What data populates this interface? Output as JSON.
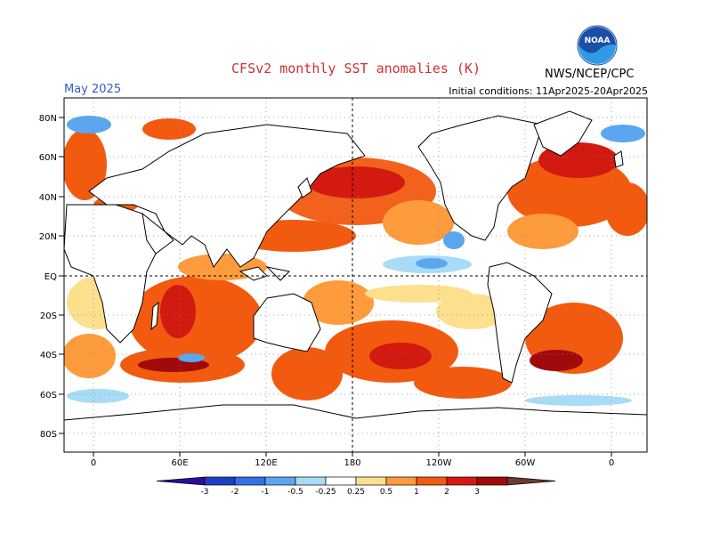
{
  "header": {
    "title": "CFSv2 monthly SST anomalies (K)",
    "month": "May 2025",
    "initial_conditions": "Initial conditions: 11Apr2025-20Apr2025",
    "agency": "NWS/NCEP/CPC",
    "logo_text": "NOAA"
  },
  "map": {
    "lat_labels": [
      "80N",
      "60N",
      "40N",
      "20N",
      "EQ",
      "20S",
      "40S",
      "60S",
      "80S"
    ],
    "lon_labels": [
      "0",
      "60E",
      "120E",
      "180",
      "120W",
      "60W",
      "0"
    ]
  },
  "colorbar": {
    "tick_labels": [
      "-3",
      "-2",
      "-1",
      "-0.5",
      "-0.25",
      "0.25",
      "0.5",
      "1",
      "2",
      "3"
    ],
    "colors": [
      "#2a0f9a",
      "#1e3ec8",
      "#2f72e6",
      "#5aa7f0",
      "#a8dcf6",
      "#ffffff",
      "#fde08e",
      "#fd9b3d",
      "#f25a10",
      "#d21a10",
      "#a00a0a",
      "#6e3a30"
    ]
  }
}
